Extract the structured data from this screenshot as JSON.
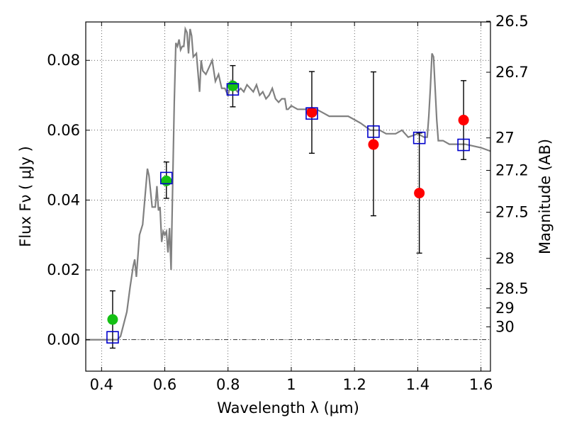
{
  "chart_data": {
    "type": "scatter",
    "xlabel": "Wavelength  λ (μm)",
    "ylabel": "Flux  Fν  ( μJy )",
    "y2label": "Magnitude (AB)",
    "xlim": [
      0.35,
      1.63
    ],
    "ylim": [
      -0.009,
      0.091
    ],
    "grid": true,
    "x_ticks": [
      0.4,
      0.6,
      0.8,
      1.0,
      1.2,
      1.4,
      1.6
    ],
    "x_tick_labels": [
      "0.4",
      "0.6",
      "0.8",
      "1",
      "1.2",
      "1.4",
      "1.6"
    ],
    "y_ticks": [
      0.0,
      0.02,
      0.04,
      0.06,
      0.08
    ],
    "y_tick_labels": [
      "0.00",
      "0.02",
      "0.04",
      "0.06",
      "0.08"
    ],
    "y2_ticks": [
      {
        "mag": "26.5",
        "flux": 0.0912
      },
      {
        "mag": "26.7",
        "flux": 0.0766
      },
      {
        "mag": "27",
        "flux": 0.0578
      },
      {
        "mag": "27.2",
        "flux": 0.0485
      },
      {
        "mag": "27.5",
        "flux": 0.0365
      },
      {
        "mag": "28",
        "flux": 0.0233
      },
      {
        "mag": "28.5",
        "flux": 0.0146
      },
      {
        "mag": "29",
        "flux": 0.0091
      },
      {
        "mag": "30",
        "flux": 0.0037
      }
    ],
    "series": [
      {
        "kind": "line",
        "color": "#808080",
        "x": [
          0.35,
          0.45,
          0.46,
          0.48,
          0.49,
          0.5,
          0.505,
          0.51,
          0.52,
          0.53,
          0.545,
          0.55,
          0.56,
          0.57,
          0.575,
          0.58,
          0.585,
          0.59,
          0.595,
          0.6,
          0.605,
          0.61,
          0.615,
          0.62,
          0.625,
          0.63,
          0.635,
          0.64,
          0.645,
          0.65,
          0.655,
          0.66,
          0.665,
          0.67,
          0.675,
          0.68,
          0.685,
          0.69,
          0.7,
          0.71,
          0.715,
          0.72,
          0.73,
          0.74,
          0.75,
          0.76,
          0.77,
          0.78,
          0.79,
          0.8,
          0.81,
          0.82,
          0.83,
          0.84,
          0.85,
          0.86,
          0.87,
          0.88,
          0.89,
          0.9,
          0.91,
          0.92,
          0.93,
          0.94,
          0.95,
          0.96,
          0.97,
          0.98,
          0.985,
          0.99,
          1.0,
          1.02,
          1.05,
          1.08,
          1.1,
          1.12,
          1.15,
          1.18,
          1.2,
          1.22,
          1.25,
          1.28,
          1.3,
          1.33,
          1.35,
          1.37,
          1.4,
          1.42,
          1.43,
          1.435,
          1.44,
          1.445,
          1.45,
          1.46,
          1.465,
          1.48,
          1.5,
          1.55,
          1.6,
          1.63
        ],
        "y": [
          0.0,
          0.0,
          0.001,
          0.008,
          0.015,
          0.021,
          0.023,
          0.018,
          0.03,
          0.033,
          0.049,
          0.047,
          0.038,
          0.038,
          0.044,
          0.037,
          0.038,
          0.028,
          0.031,
          0.03,
          0.031,
          0.025,
          0.032,
          0.02,
          0.045,
          0.068,
          0.085,
          0.084,
          0.086,
          0.083,
          0.084,
          0.084,
          0.089,
          0.088,
          0.082,
          0.089,
          0.087,
          0.081,
          0.082,
          0.071,
          0.08,
          0.077,
          0.076,
          0.078,
          0.08,
          0.074,
          0.076,
          0.072,
          0.072,
          0.07,
          0.074,
          0.072,
          0.071,
          0.072,
          0.071,
          0.073,
          0.072,
          0.071,
          0.073,
          0.07,
          0.071,
          0.069,
          0.07,
          0.072,
          0.069,
          0.068,
          0.069,
          0.069,
          0.066,
          0.066,
          0.067,
          0.066,
          0.066,
          0.066,
          0.065,
          0.064,
          0.064,
          0.064,
          0.063,
          0.062,
          0.06,
          0.06,
          0.059,
          0.059,
          0.06,
          0.058,
          0.059,
          0.058,
          0.058,
          0.064,
          0.072,
          0.082,
          0.081,
          0.063,
          0.057,
          0.057,
          0.056,
          0.056,
          0.055,
          0.054
        ]
      },
      {
        "kind": "points",
        "marker": "circle",
        "color": "#14c014",
        "x": [
          0.435,
          0.605,
          0.815
        ],
        "y": [
          0.0058,
          0.0455,
          0.0727
        ],
        "err_low": [
          0.0082,
          0.005,
          0.006
        ],
        "err_high": [
          0.0082,
          0.0054,
          0.0058
        ]
      },
      {
        "kind": "points",
        "marker": "circle",
        "color": "#ff0000",
        "x": [
          1.065,
          1.26,
          1.405,
          1.545
        ],
        "y": [
          0.0651,
          0.0559,
          0.042,
          0.0629
        ],
        "err_low": [
          0.0117,
          0.0204,
          0.0172,
          0.0113
        ],
        "err_high": [
          0.0117,
          0.0208,
          0.0172,
          0.0113
        ]
      },
      {
        "kind": "points",
        "marker": "open-square",
        "color": "#0000cc",
        "x": [
          0.435,
          0.605,
          0.815,
          1.065,
          1.26,
          1.405,
          1.545
        ],
        "y": [
          0.0007,
          0.0463,
          0.0717,
          0.0648,
          0.0596,
          0.0578,
          0.0558
        ]
      }
    ]
  }
}
